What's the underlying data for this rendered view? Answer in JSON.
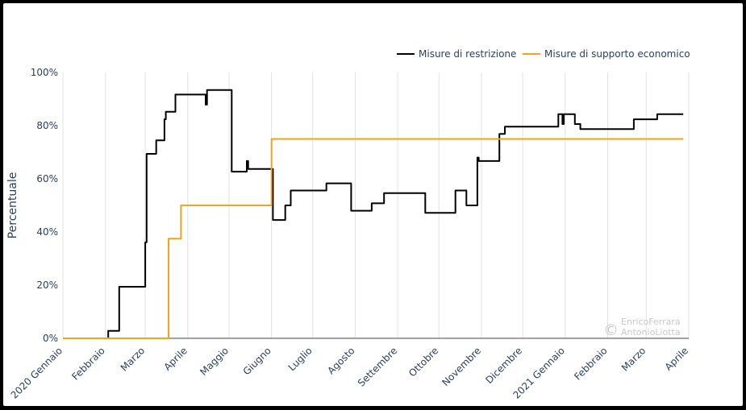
{
  "chart_data": {
    "type": "line",
    "title": "",
    "xlabel": "",
    "ylabel": "Percentuale",
    "ylim": [
      0,
      100
    ],
    "yticks": [
      0,
      20,
      40,
      60,
      80,
      100
    ],
    "ytick_labels": [
      "0%",
      "20%",
      "40%",
      "60%",
      "80%",
      "100%"
    ],
    "xlim": [
      "2020-01-01",
      "2021-04-01"
    ],
    "xticks": [
      {
        "date": "2020-01-01",
        "label": "2020 Gennaio"
      },
      {
        "date": "2020-02-01",
        "label": "Febbraio"
      },
      {
        "date": "2020-03-01",
        "label": "Marzo"
      },
      {
        "date": "2020-04-01",
        "label": "Aprile"
      },
      {
        "date": "2020-05-01",
        "label": "Maggio"
      },
      {
        "date": "2020-06-01",
        "label": "Giugno"
      },
      {
        "date": "2020-07-01",
        "label": "Luglio"
      },
      {
        "date": "2020-08-01",
        "label": "Agosto"
      },
      {
        "date": "2020-09-01",
        "label": "Settembre"
      },
      {
        "date": "2020-10-01",
        "label": "Ottobre"
      },
      {
        "date": "2020-11-01",
        "label": "Novembre"
      },
      {
        "date": "2020-12-01",
        "label": "Dicembre"
      },
      {
        "date": "2021-01-01",
        "label": "2021 Gennaio"
      },
      {
        "date": "2021-02-01",
        "label": "Febbraio"
      },
      {
        "date": "2021-03-01",
        "label": "Marzo"
      },
      {
        "date": "2021-04-01",
        "label": "Aprile"
      }
    ],
    "grid": "vertical",
    "legend_position": "top-right",
    "step": true,
    "series": [
      {
        "name": "Misure di restrizione",
        "color": "#000000",
        "points": [
          [
            "2020-01-01",
            0
          ],
          [
            "2020-02-02",
            0
          ],
          [
            "2020-02-03",
            2.8
          ],
          [
            "2020-02-09",
            2.8
          ],
          [
            "2020-02-11",
            19.4
          ],
          [
            "2020-02-28",
            19.4
          ],
          [
            "2020-03-01",
            36.1
          ],
          [
            "2020-03-02",
            69.4
          ],
          [
            "2020-03-08",
            69.4
          ],
          [
            "2020-03-09",
            74.5
          ],
          [
            "2020-03-14",
            74.5
          ],
          [
            "2020-03-15",
            82.4
          ],
          [
            "2020-03-16",
            85.2
          ],
          [
            "2020-03-22",
            85.2
          ],
          [
            "2020-03-23",
            91.7
          ],
          [
            "2020-04-13",
            91.7
          ],
          [
            "2020-04-14",
            87.9
          ],
          [
            "2020-04-15",
            93.4
          ],
          [
            "2020-05-02",
            93.4
          ],
          [
            "2020-05-03",
            62.7
          ],
          [
            "2020-05-13",
            62.7
          ],
          [
            "2020-05-14",
            66.7
          ],
          [
            "2020-05-15",
            63.7
          ],
          [
            "2020-05-30",
            63.7
          ],
          [
            "2020-06-02",
            44.5
          ],
          [
            "2020-06-10",
            44.5
          ],
          [
            "2020-06-11",
            50.0
          ],
          [
            "2020-06-14",
            50.0
          ],
          [
            "2020-06-15",
            55.6
          ],
          [
            "2020-07-10",
            55.6
          ],
          [
            "2020-07-11",
            58.3
          ],
          [
            "2020-07-28",
            58.3
          ],
          [
            "2020-07-29",
            48.0
          ],
          [
            "2020-08-12",
            48.0
          ],
          [
            "2020-08-13",
            50.8
          ],
          [
            "2020-08-21",
            50.8
          ],
          [
            "2020-08-22",
            54.6
          ],
          [
            "2020-09-20",
            54.6
          ],
          [
            "2020-09-21",
            47.2
          ],
          [
            "2020-10-12",
            47.2
          ],
          [
            "2020-10-13",
            55.6
          ],
          [
            "2020-10-20",
            55.6
          ],
          [
            "2020-10-21",
            50.0
          ],
          [
            "2020-10-28",
            50.0
          ],
          [
            "2020-10-29",
            68.0
          ],
          [
            "2020-10-30",
            66.7
          ],
          [
            "2020-11-13",
            66.7
          ],
          [
            "2020-11-14",
            76.9
          ],
          [
            "2020-11-17",
            76.9
          ],
          [
            "2020-11-18",
            79.6
          ],
          [
            "2020-12-26",
            79.6
          ],
          [
            "2020-12-27",
            84.3
          ],
          [
            "2020-12-29",
            84.3
          ],
          [
            "2020-12-30",
            80.6
          ],
          [
            "2020-12-31",
            84.3
          ],
          [
            "2021-01-07",
            84.3
          ],
          [
            "2021-01-08",
            80.6
          ],
          [
            "2021-01-11",
            80.6
          ],
          [
            "2021-01-12",
            78.7
          ],
          [
            "2021-02-19",
            78.7
          ],
          [
            "2021-02-20",
            82.4
          ],
          [
            "2021-03-08",
            82.4
          ],
          [
            "2021-03-09",
            84.3
          ],
          [
            "2021-03-28",
            84.3
          ]
        ]
      },
      {
        "name": "Misure di supporto economico",
        "color": "#f7a21b",
        "points": [
          [
            "2020-01-01",
            0
          ],
          [
            "2020-03-17",
            0
          ],
          [
            "2020-03-18",
            37.5
          ],
          [
            "2020-03-26",
            37.5
          ],
          [
            "2020-03-27",
            50.0
          ],
          [
            "2020-05-31",
            50.0
          ],
          [
            "2020-06-01",
            75.0
          ],
          [
            "2021-03-28",
            75.0
          ]
        ]
      }
    ]
  },
  "watermark": {
    "symbol": "©",
    "line1": "EnricoFerrara",
    "line2": "AntonioLiotta"
  }
}
